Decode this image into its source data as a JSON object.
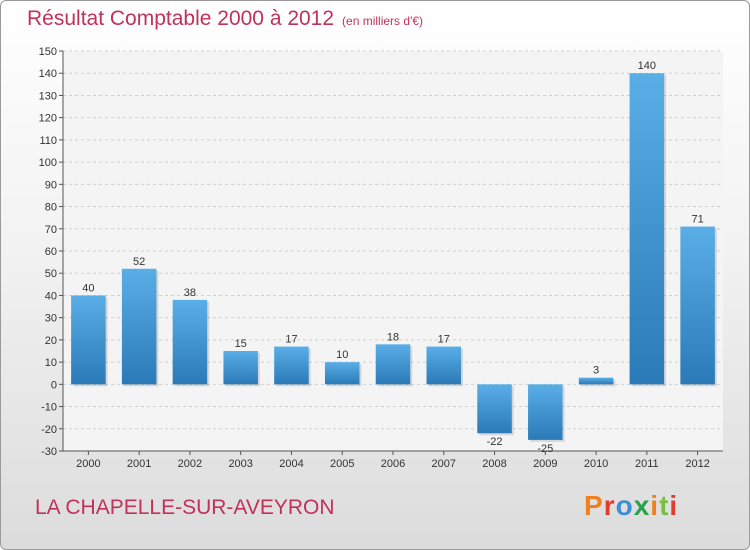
{
  "header": {
    "title": "Résultat Comptable 2000 à 2012",
    "subtitle": "(en milliers d'€)"
  },
  "footer": {
    "commune": "LA CHAPELLE-SUR-AVEYRON",
    "logo": "Proxiti"
  },
  "colors": {
    "title": "#c0325a",
    "bar_top": "#5aaee6",
    "bar_bottom": "#2a7ab8",
    "logo_letters": [
      "#f07f1e",
      "#e23c2e",
      "#3c8fd6",
      "#2aa14a",
      "#f07f1e",
      "#7bbf3e",
      "#e23c2e"
    ]
  },
  "chart_data": {
    "type": "bar",
    "title": "Résultat Comptable 2000 à 2012",
    "subtitle": "(en milliers d'€)",
    "categories": [
      "2000",
      "2001",
      "2002",
      "2003",
      "2004",
      "2005",
      "2006",
      "2007",
      "2008",
      "2009",
      "2010",
      "2011",
      "2012"
    ],
    "values": [
      40,
      52,
      38,
      15,
      17,
      10,
      18,
      17,
      -22,
      -25,
      3,
      140,
      71
    ],
    "ylim": [
      -30,
      150
    ],
    "yticks": [
      -30,
      -20,
      -10,
      0,
      10,
      20,
      30,
      40,
      50,
      60,
      70,
      80,
      90,
      100,
      110,
      120,
      130,
      140,
      150
    ],
    "grid": true,
    "legend": "none"
  }
}
